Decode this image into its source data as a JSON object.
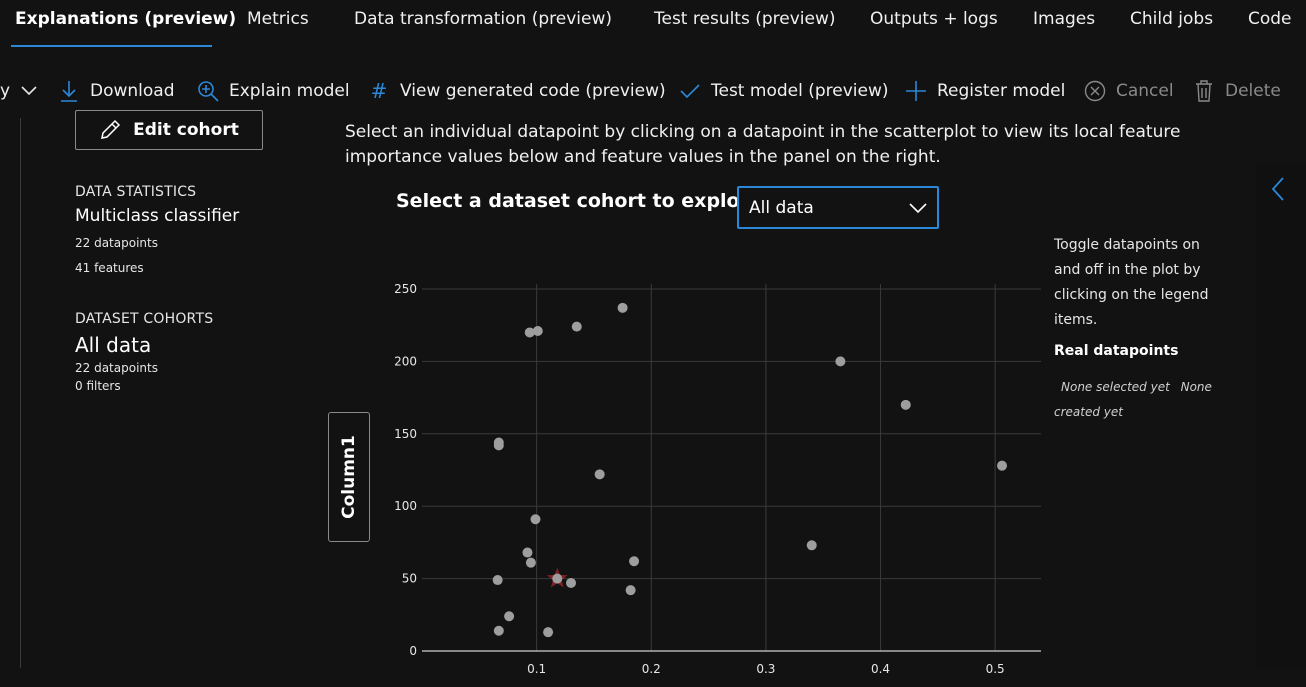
{
  "tabs": [
    {
      "label": "Explanations (preview)",
      "active": true
    },
    {
      "label": "Metrics"
    },
    {
      "label": "Data transformation (preview)"
    },
    {
      "label": "Test results (preview)"
    },
    {
      "label": "Outputs + logs"
    },
    {
      "label": "Images"
    },
    {
      "label": "Child jobs"
    },
    {
      "label": "Code"
    }
  ],
  "toolbar": {
    "truncated_label": "y",
    "download": "Download",
    "explain_model": "Explain model",
    "view_code": "View generated code (preview)",
    "test_model": "Test model (preview)",
    "register_model": "Register model",
    "cancel": "Cancel",
    "delete": "Delete"
  },
  "left_panel": {
    "edit_cohort": "Edit cohort",
    "data_statistics_heading": "DATA STATISTICS",
    "model_type": "Multiclass classifier",
    "datapoints": "22 datapoints",
    "features": "41 features",
    "dataset_cohorts_heading": "DATASET COHORTS",
    "cohort_name": "All data",
    "cohort_datapoints": "22 datapoints",
    "cohort_filters": "0 filters"
  },
  "instruction": "Select an individual datapoint by clicking on a datapoint in the scatterplot to view its local feature importance values below and feature values in the panel on the right.",
  "cohort_selector": {
    "label": "Select a dataset cohort to explore",
    "value": "All data"
  },
  "y_axis_button": "Column1",
  "legend": {
    "help": "Toggle datapoints on and off in the plot by clicking on the legend items.",
    "title": "Real datapoints",
    "none_selected": "None selected yet",
    "none_created": "None created yet"
  },
  "colors": {
    "accent": "#2b88d8",
    "point": "#9e9e9e",
    "selected": "#a4262c"
  },
  "chart_data": {
    "type": "scatter",
    "xlabel": "",
    "ylabel": "Column1",
    "xlim": [
      0.0,
      0.54
    ],
    "ylim": [
      0,
      250
    ],
    "x_ticks": [
      0.1,
      0.2,
      0.3,
      0.4,
      0.5
    ],
    "x_tick_labels": [
      "0.1",
      "0.2",
      "0.3",
      "0.4",
      "0.5"
    ],
    "y_ticks": [
      0,
      50,
      100,
      150,
      200,
      250
    ],
    "grid": true,
    "points": [
      {
        "x": 0.094,
        "y": 220
      },
      {
        "x": 0.101,
        "y": 221
      },
      {
        "x": 0.135,
        "y": 224
      },
      {
        "x": 0.175,
        "y": 237
      },
      {
        "x": 0.067,
        "y": 144
      },
      {
        "x": 0.067,
        "y": 142
      },
      {
        "x": 0.155,
        "y": 122
      },
      {
        "x": 0.099,
        "y": 91
      },
      {
        "x": 0.092,
        "y": 68
      },
      {
        "x": 0.095,
        "y": 61
      },
      {
        "x": 0.066,
        "y": 49
      },
      {
        "x": 0.118,
        "y": 50
      },
      {
        "x": 0.13,
        "y": 47
      },
      {
        "x": 0.185,
        "y": 62
      },
      {
        "x": 0.182,
        "y": 42
      },
      {
        "x": 0.076,
        "y": 24
      },
      {
        "x": 0.067,
        "y": 14
      },
      {
        "x": 0.11,
        "y": 13
      },
      {
        "x": 0.365,
        "y": 200
      },
      {
        "x": 0.422,
        "y": 170
      },
      {
        "x": 0.506,
        "y": 128
      },
      {
        "x": 0.34,
        "y": 73
      }
    ],
    "selected_marker": {
      "x": 0.118,
      "y": 50
    }
  }
}
